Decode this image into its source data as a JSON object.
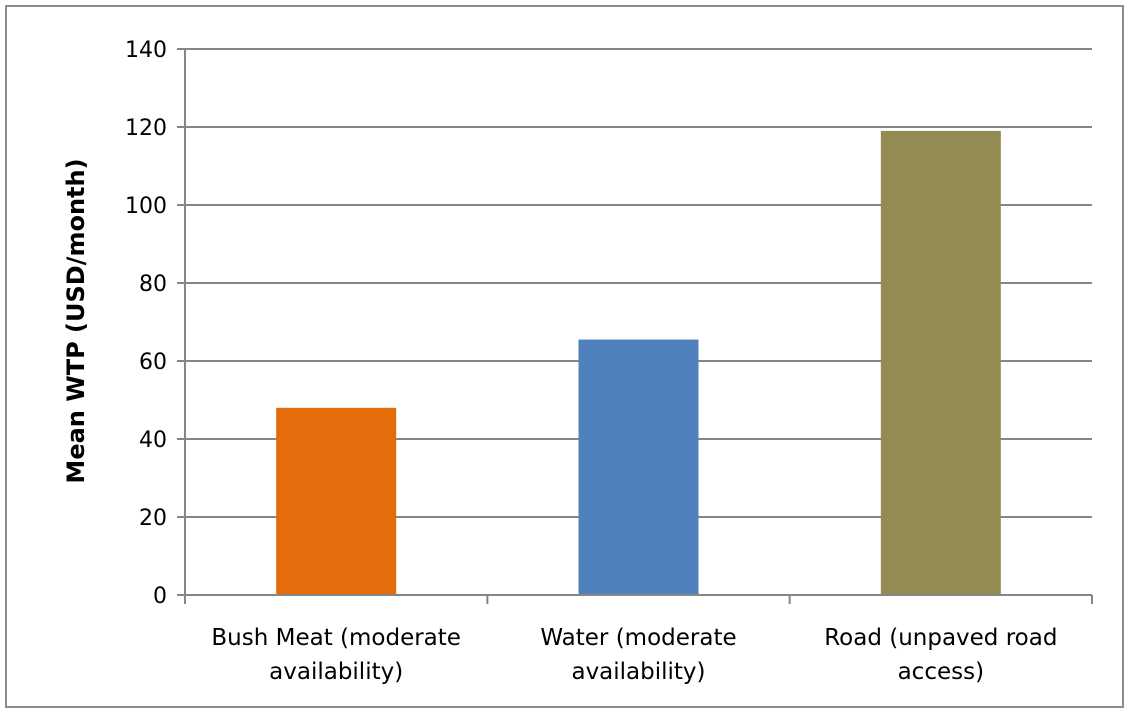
{
  "chart_data": {
    "type": "bar",
    "title": "",
    "xlabel": "",
    "ylabel": "Mean WTP (USD/month)",
    "ylim": [
      0,
      140
    ],
    "yticks": [
      0,
      20,
      40,
      60,
      80,
      100,
      120,
      140
    ],
    "grid": true,
    "legend": "none",
    "categories": [
      [
        "Bush Meat (moderate",
        "availability)"
      ],
      [
        "Water (moderate",
        "availability)"
      ],
      [
        "Road (unpaved road",
        "access)"
      ]
    ],
    "values": [
      48,
      65.5,
      119
    ],
    "colors": [
      "#E46C0A",
      "#4F81BD",
      "#948A54"
    ]
  }
}
